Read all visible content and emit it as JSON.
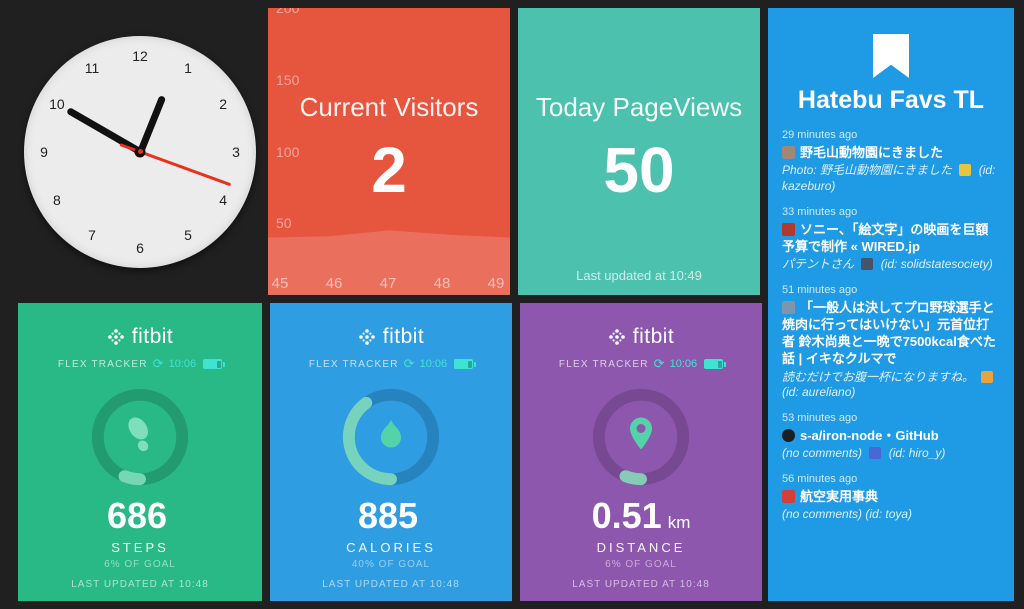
{
  "page": {
    "background": "#202020"
  },
  "clock": {
    "numbers": [
      "1",
      "2",
      "3",
      "4",
      "5",
      "6",
      "7",
      "8",
      "9",
      "10",
      "11",
      "12"
    ],
    "hour_deg": 22,
    "minute_deg": 300,
    "second_deg": 110
  },
  "visitors": {
    "title": "Current Visitors",
    "value": "2",
    "color": "#e6553e",
    "y_ticks": [
      "200",
      "150",
      "100",
      "50"
    ],
    "x_ticks": [
      "45",
      "46",
      "47",
      "48",
      "49"
    ]
  },
  "chart_data": {
    "type": "area",
    "title": "Current Visitors",
    "x": [
      45,
      46,
      47,
      48,
      49
    ],
    "values": [
      40,
      41,
      45,
      42,
      40
    ],
    "xlabel": "",
    "ylabel": "",
    "ylim": [
      0,
      200
    ],
    "y_gridlines": [
      50,
      100,
      150,
      200
    ],
    "legend": false
  },
  "pageviews": {
    "title": "Today PageViews",
    "value": "50",
    "updated": "Last updated at 10:49",
    "color": "#4cc2ae"
  },
  "hatebu": {
    "title": "Hatebu Favs TL",
    "color": "#1f9ae4",
    "items": [
      {
        "time": "29 minutes ago",
        "icon": "photo-favicon",
        "icon_color": "#a18876",
        "icon_shape": "square",
        "title": "野毛山動物園にきました",
        "sub_text": "Photo: 野毛山動物園にきました",
        "sub_icon": "notebook-favicon",
        "sub_icon_color": "#e7c63f",
        "sub_id": "(id: kazeburo)"
      },
      {
        "time": "33 minutes ago",
        "icon": "movie-favicon",
        "icon_color": "#b03a30",
        "icon_shape": "square",
        "title": "ソニー、「絵文字」の映画を巨額予算で制作 « WIRED.jp",
        "sub_text": "パテントさん",
        "sub_icon": "camera-favicon",
        "sub_icon_color": "#44546a",
        "sub_id": "(id: solidstatesociety)"
      },
      {
        "time": "51 minutes ago",
        "icon": "train-favicon",
        "icon_color": "#7d95ad",
        "icon_shape": "square",
        "title": "「一般人は決してプロ野球選手と焼肉に行ってはいけない」元首位打者 鈴木尚典と一晩で7500kcal食べた話 | イキなクルマで",
        "sub_text": "読むだけでお腹一杯になりますね。",
        "sub_icon": "face-favicon",
        "sub_icon_color": "#e8a33d",
        "sub_id": "(id: aureliano)"
      },
      {
        "time": "53 minutes ago",
        "icon": "github-favicon",
        "icon_color": "#1b1f23",
        "icon_shape": "circle",
        "title": "s-a/iron-node・GitHub",
        "sub_text": "(no comments)",
        "sub_icon": "note-favicon",
        "sub_icon_color": "#4a67d8",
        "sub_id": "(id: hiro_y)"
      },
      {
        "time": "56 minutes ago",
        "icon": "dictionary-favicon",
        "icon_color": "#d43f3a",
        "icon_shape": "square",
        "title": "航空実用事典",
        "sub_text": "(no comments)",
        "sub_icon": null,
        "sub_icon_color": null,
        "sub_id": "(id: toya)"
      }
    ]
  },
  "fitbit": {
    "logo": "fitbit",
    "tracker": "FLEX TRACKER",
    "sync_time": "10:06",
    "updated": "LAST UPDATED AT 10:48",
    "accent": "#3fe3d1",
    "widgets": [
      {
        "name": "steps",
        "value": "686",
        "unit": "",
        "label": "STEPS",
        "goal": "6% OF GOAL",
        "pct": 6,
        "color": "#29b987"
      },
      {
        "name": "calories",
        "value": "885",
        "unit": "",
        "label": "CALORIES",
        "goal": "40% OF GOAL",
        "pct": 40,
        "color": "#2f9de2"
      },
      {
        "name": "distance",
        "value": "0.51",
        "unit": "km",
        "label": "DISTANCE",
        "goal": "6% OF GOAL",
        "pct": 6,
        "color": "#8e57ae"
      }
    ]
  }
}
